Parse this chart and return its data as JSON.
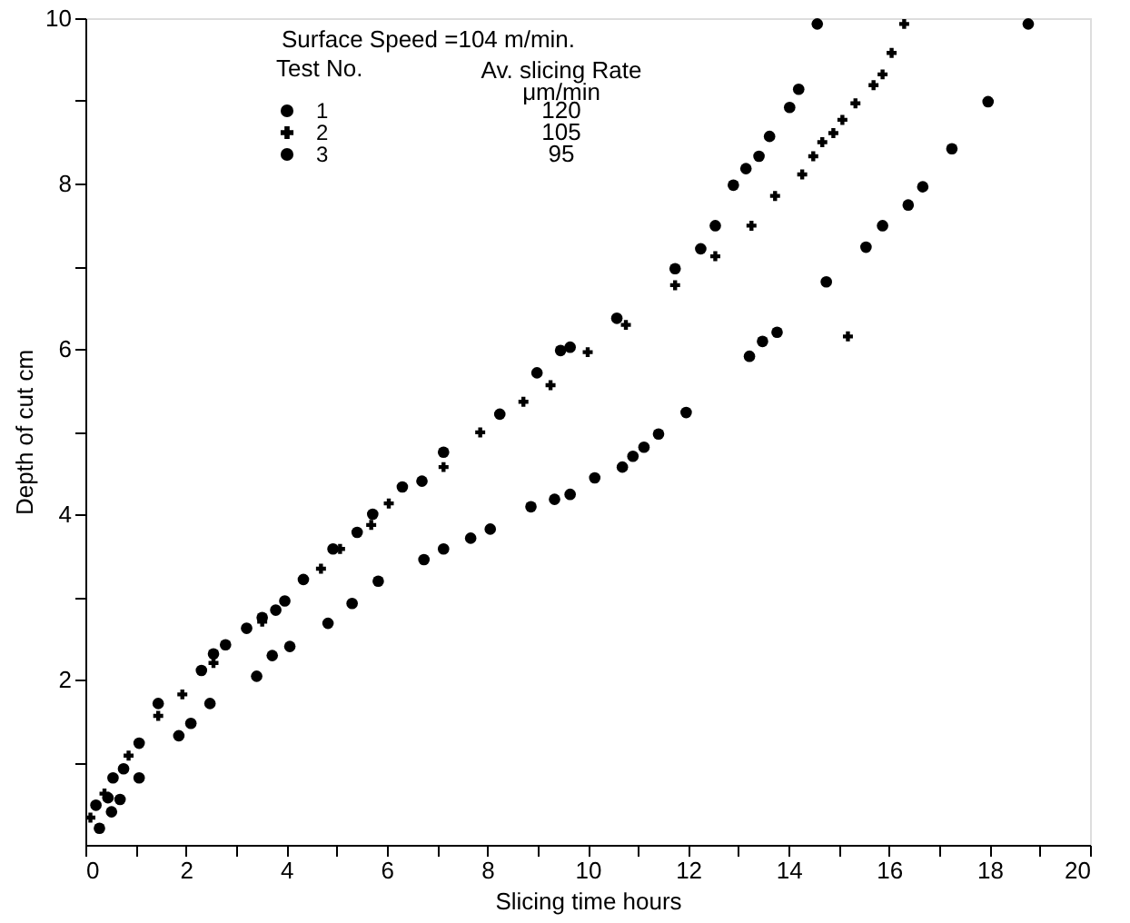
{
  "chart_data": {
    "type": "scatter",
    "xlabel": "Slicing time hours",
    "ylabel": "Depth of cut cm",
    "legend_title": "Test No.",
    "legend": "top",
    "annotations": [
      "Surface Speed =104 m/min.",
      "Av. slicing Rate",
      "μm/min",
      "120",
      "105",
      "95"
    ],
    "xlim": [
      0,
      20
    ],
    "ylim": [
      0,
      10
    ],
    "xticks": [
      0,
      {
        "value": 1,
        "label": null
      },
      2,
      {
        "value": 3,
        "label": null
      },
      4,
      {
        "value": 5,
        "label": null
      },
      6,
      {
        "value": 7,
        "label": null
      },
      8,
      {
        "value": 9,
        "label": null
      },
      10,
      {
        "value": 11,
        "label": null
      },
      12,
      {
        "value": 13,
        "label": null
      },
      14,
      {
        "value": 15,
        "label": null
      },
      16,
      {
        "value": 17,
        "label": null
      },
      18,
      {
        "value": 19,
        "label": null
      },
      20
    ],
    "yticks": [
      {
        "value": 1,
        "label": null
      },
      2,
      {
        "value": 3,
        "label": null
      },
      4,
      {
        "value": 5,
        "label": null
      },
      6,
      {
        "value": 7,
        "label": null
      },
      8,
      {
        "value": 9,
        "label": null
      },
      10
    ],
    "grid": false,
    "series": [
      {
        "name": "1",
        "color": "#000000",
        "marker": "circle",
        "x": [
          0.21,
          0.55,
          0.76,
          1.07,
          1.45,
          2.31,
          2.55,
          2.79,
          3.21,
          3.52,
          3.79,
          3.97,
          4.34,
          4.93,
          5.41,
          5.72,
          6.31,
          6.7,
          7.13,
          8.25,
          8.99,
          9.46,
          9.65,
          10.58,
          11.74,
          12.25,
          12.54,
          12.9,
          13.15,
          13.41,
          13.62,
          14.02,
          14.2,
          14.57
        ],
        "values": [
          0.48,
          0.81,
          0.92,
          1.23,
          1.71,
          2.11,
          2.31,
          2.42,
          2.62,
          2.75,
          2.84,
          2.95,
          3.21,
          3.58,
          3.78,
          4.0,
          4.33,
          4.4,
          4.75,
          5.21,
          5.71,
          5.98,
          6.02,
          6.37,
          6.97,
          7.21,
          7.49,
          7.98,
          8.18,
          8.33,
          8.57,
          8.92,
          9.14,
          9.93
        ]
      },
      {
        "name": "2",
        "color": "#000000",
        "marker": "cross",
        "x": [
          0.1,
          0.38,
          0.86,
          1.45,
          1.93,
          2.55,
          3.52,
          4.69,
          5.07,
          5.69,
          6.04,
          7.13,
          7.86,
          8.72,
          9.26,
          10.0,
          10.76,
          11.74,
          12.54,
          13.26,
          13.73,
          14.27,
          14.49,
          14.67,
          14.89,
          15.07,
          15.18,
          15.33,
          15.69,
          15.87,
          16.05,
          16.3
        ],
        "values": [
          0.33,
          0.62,
          1.08,
          1.56,
          1.82,
          2.2,
          2.7,
          3.34,
          3.58,
          3.87,
          4.13,
          4.57,
          4.99,
          5.36,
          5.56,
          5.96,
          6.29,
          6.77,
          7.12,
          7.49,
          7.85,
          8.11,
          8.33,
          8.5,
          8.61,
          8.77,
          6.15,
          8.97,
          9.19,
          9.32,
          9.58,
          9.93
        ]
      },
      {
        "name": "3",
        "color": "#000000",
        "marker": "circle",
        "x": [
          0.28,
          0.45,
          0.52,
          0.69,
          1.07,
          1.86,
          2.1,
          2.48,
          3.41,
          3.72,
          4.07,
          4.83,
          5.31,
          5.83,
          6.74,
          7.13,
          7.67,
          8.06,
          8.87,
          9.34,
          9.65,
          10.14,
          10.69,
          10.9,
          11.12,
          11.41,
          11.96,
          13.22,
          13.48,
          13.77,
          14.75,
          15.54,
          15.87,
          16.38,
          16.67,
          17.25,
          17.97,
          18.77
        ],
        "values": [
          0.2,
          0.57,
          0.4,
          0.55,
          0.81,
          1.32,
          1.47,
          1.71,
          2.04,
          2.29,
          2.4,
          2.68,
          2.92,
          3.19,
          3.45,
          3.58,
          3.71,
          3.82,
          4.09,
          4.18,
          4.24,
          4.44,
          4.57,
          4.7,
          4.81,
          4.97,
          5.23,
          5.91,
          6.09,
          6.2,
          6.81,
          7.23,
          7.49,
          7.74,
          7.96,
          8.42,
          8.99,
          9.93
        ]
      }
    ]
  }
}
